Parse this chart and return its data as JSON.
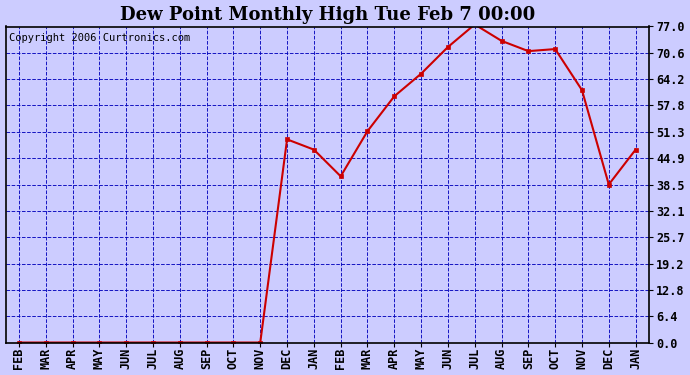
{
  "title": "Dew Point Monthly High Tue Feb 7 00:00",
  "copyright": "Copyright 2006 Curtronics.com",
  "x_labels": [
    "FEB",
    "MAR",
    "APR",
    "MAY",
    "JUN",
    "JUL",
    "AUG",
    "SEP",
    "OCT",
    "NOV",
    "DEC",
    "JAN",
    "FEB",
    "MAR",
    "APR",
    "MAY",
    "JUN",
    "JUL",
    "AUG",
    "SEP",
    "OCT",
    "NOV",
    "DEC",
    "JAN"
  ],
  "y_values": [
    0.0,
    0.0,
    0.0,
    0.0,
    0.0,
    0.0,
    0.0,
    0.0,
    0.0,
    0.0,
    49.5,
    47.0,
    40.5,
    51.5,
    60.0,
    65.5,
    72.0,
    77.5,
    73.5,
    71.0,
    71.5,
    61.5,
    38.5,
    47.0
  ],
  "y_ticks": [
    0.0,
    6.4,
    12.8,
    19.2,
    25.7,
    32.1,
    38.5,
    44.9,
    51.3,
    57.8,
    64.2,
    70.6,
    77.0
  ],
  "ylim": [
    0.0,
    77.0
  ],
  "line_color": "#cc0000",
  "marker_color": "#cc0000",
  "bg_color": "#ccccff",
  "plot_bg_color": "#ccccff",
  "grid_color": "#0000bb",
  "border_color": "#000000",
  "title_fontsize": 13,
  "tick_fontsize": 8.5,
  "copyright_fontsize": 7.5
}
